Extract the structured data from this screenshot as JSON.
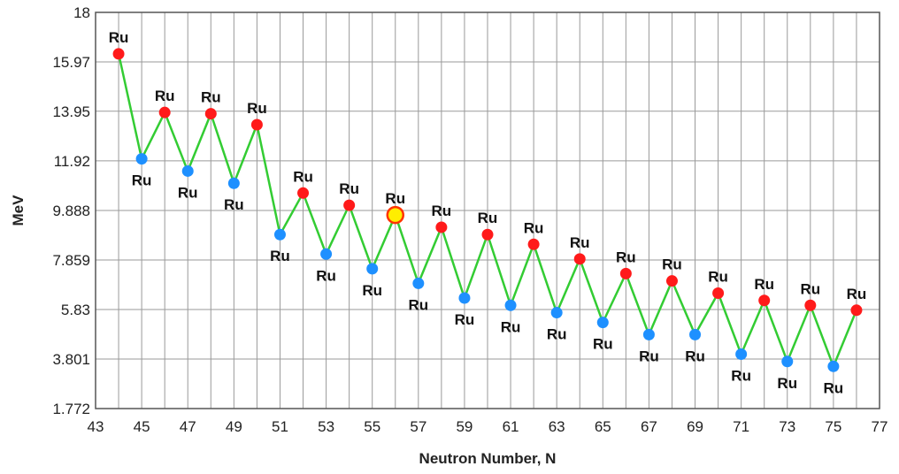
{
  "chart_data": {
    "type": "line",
    "title": "",
    "xlabel": "Neutron Number, N",
    "ylabel": "MeV",
    "xlim": [
      43,
      77
    ],
    "ylim": [
      1.772,
      18
    ],
    "x_ticks": [
      43,
      45,
      47,
      49,
      51,
      53,
      55,
      57,
      59,
      61,
      63,
      65,
      67,
      69,
      71,
      73,
      75,
      77
    ],
    "x_tick_labels": [
      "43",
      "45",
      "47",
      "49",
      "51",
      "53",
      "55",
      "57",
      "59",
      "61",
      "63",
      "65",
      "67",
      "69",
      "71",
      "73",
      "75",
      "77"
    ],
    "y_ticks": [
      1.772,
      3.801,
      5.83,
      7.859,
      9.888,
      11.92,
      13.95,
      15.97,
      18
    ],
    "y_tick_labels": [
      "1.772",
      "3.801",
      "5.83",
      "7.859",
      "9.888",
      "11.92",
      "13.95",
      "15.97",
      "18"
    ],
    "grid": true,
    "line_color": "#33cc33",
    "even_color": "#ff1a1a",
    "odd_color": "#1e90ff",
    "highlight_fill": "#ffee00",
    "highlight_stroke": "#ff3300",
    "highlight_x": 56,
    "point_label": "Ru",
    "series": [
      {
        "x": [
          44,
          45,
          46,
          47,
          48,
          49,
          50,
          51,
          52,
          53,
          54,
          55,
          56,
          57,
          58,
          59,
          60,
          61,
          62,
          63,
          64,
          65,
          66,
          67,
          68,
          69,
          70,
          71,
          72,
          73,
          74,
          75,
          76
        ],
        "y": [
          16.3,
          12.0,
          13.9,
          11.5,
          13.85,
          11.0,
          13.4,
          8.9,
          10.6,
          8.1,
          10.1,
          7.5,
          9.7,
          6.9,
          9.2,
          6.3,
          8.9,
          6.0,
          8.5,
          5.7,
          7.9,
          5.3,
          7.3,
          4.8,
          7.0,
          4.8,
          6.5,
          4.0,
          6.2,
          3.7,
          6.0,
          3.5,
          5.8
        ]
      }
    ]
  }
}
